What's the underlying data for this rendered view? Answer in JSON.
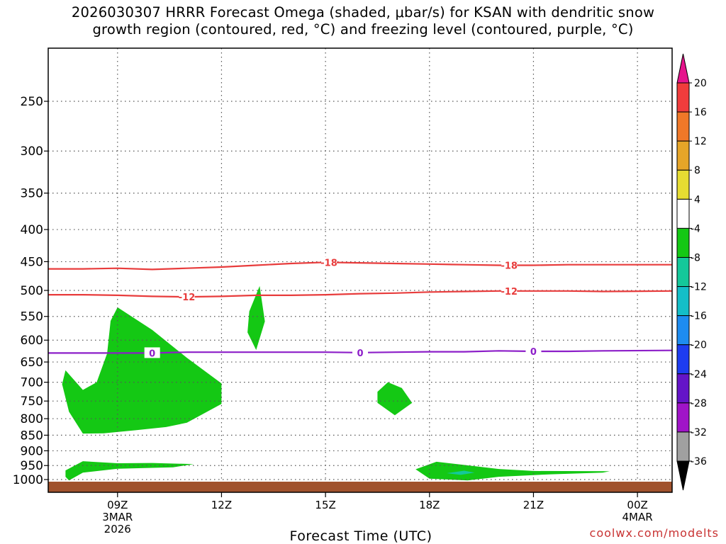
{
  "title_line1": "2026030307 HRRR Forecast Omega (shaded, μbar/s) for KSAN with dendritic snow",
  "title_line2": "growth region (contoured, red, °C) and freezing level (contoured, purple, °C)",
  "xlabel": "Forecast Time (UTC)",
  "credit": "coolwx.com/modelts",
  "colors": {
    "dgz_contour": "#e83c3c",
    "freezing_contour": "#8c1ec8",
    "ground": "#a0522d",
    "grid": "#555555",
    "omega_-4_-8": "#14c814",
    "omega_-8_-12": "#14c89a"
  },
  "chart_data": {
    "type": "heatmap",
    "title": "2026030307 HRRR Forecast Omega (shaded, μbar/s) for KSAN with dendritic snow growth region (contoured, red, °C) and freezing level (contoured, purple, °C)",
    "xlabel": "Forecast Time (UTC)",
    "ylabel": "",
    "y_scale": "log-pressure",
    "y_inverted": true,
    "ylim_hPa": [
      1020,
      200
    ],
    "y_ticks": [
      "250",
      "300",
      "350",
      "400",
      "450",
      "500",
      "550",
      "600",
      "650",
      "700",
      "750",
      "800",
      "850",
      "900",
      "950",
      "1000"
    ],
    "x_ticks": [
      {
        "label": "09Z",
        "sub": [
          "3MAR",
          "2026"
        ],
        "hour": 9
      },
      {
        "label": "12Z",
        "sub": [],
        "hour": 12
      },
      {
        "label": "15Z",
        "sub": [],
        "hour": 15
      },
      {
        "label": "18Z",
        "sub": [],
        "hour": 18
      },
      {
        "label": "21Z",
        "sub": [],
        "hour": 21
      },
      {
        "label": "00Z",
        "sub": [
          "4MAR"
        ],
        "hour": 24
      }
    ],
    "xlim_hours": [
      7,
      25
    ],
    "grid": true,
    "colorbar": {
      "labels": [
        "20",
        "16",
        "12",
        "8",
        "4",
        "-4",
        "-8",
        "-12",
        "-16",
        "-20",
        "-24",
        "-28",
        "-32",
        "-36"
      ],
      "bins": [
        {
          "min": 20,
          "max": null,
          "color": "#e6148c"
        },
        {
          "min": 16,
          "max": 20,
          "color": "#f03c3c"
        },
        {
          "min": 12,
          "max": 16,
          "color": "#f07828"
        },
        {
          "min": 8,
          "max": 12,
          "color": "#e6a528"
        },
        {
          "min": 4,
          "max": 8,
          "color": "#e6dc32"
        },
        {
          "min": -4,
          "max": 4,
          "color": "#ffffff"
        },
        {
          "min": -8,
          "max": -4,
          "color": "#14c814"
        },
        {
          "min": -12,
          "max": -8,
          "color": "#14c89a"
        },
        {
          "min": -16,
          "max": -12,
          "color": "#14bec8"
        },
        {
          "min": -20,
          "max": -16,
          "color": "#1e8cf0"
        },
        {
          "min": -24,
          "max": -20,
          "color": "#1e3cf0"
        },
        {
          "min": -28,
          "max": -24,
          "color": "#6414c8"
        },
        {
          "min": -32,
          "max": -28,
          "color": "#a014c8"
        },
        {
          "min": -36,
          "max": -32,
          "color": "#a0a0a0"
        },
        {
          "min": null,
          "max": -36,
          "color": "#000000"
        }
      ]
    },
    "contours": [
      {
        "name": "DGZ -18°C",
        "value": "-18",
        "color": "#e83c3c",
        "points": [
          [
            7,
            462
          ],
          [
            8,
            462
          ],
          [
            9,
            461
          ],
          [
            10,
            463
          ],
          [
            11,
            461
          ],
          [
            12,
            459
          ],
          [
            13,
            456
          ],
          [
            14,
            453
          ],
          [
            15,
            451
          ],
          [
            16,
            452
          ],
          [
            17,
            453
          ],
          [
            18,
            454
          ],
          [
            19,
            455
          ],
          [
            20,
            456
          ],
          [
            21,
            456
          ],
          [
            22,
            455
          ],
          [
            23,
            455
          ],
          [
            25,
            455
          ]
        ],
        "labels": [
          [
            15.1,
            451
          ],
          [
            20.3,
            456
          ]
        ]
      },
      {
        "name": "DGZ -12°C",
        "value": "-12",
        "color": "#e83c3c",
        "points": [
          [
            7,
            508
          ],
          [
            8,
            508
          ],
          [
            9,
            509
          ],
          [
            10,
            511
          ],
          [
            11,
            512
          ],
          [
            12,
            511
          ],
          [
            13,
            509
          ],
          [
            14,
            509
          ],
          [
            15,
            508
          ],
          [
            16,
            506
          ],
          [
            17,
            505
          ],
          [
            18,
            503
          ],
          [
            19,
            502
          ],
          [
            20,
            501
          ],
          [
            21,
            501
          ],
          [
            22,
            501
          ],
          [
            23,
            502
          ],
          [
            25,
            501
          ]
        ],
        "labels": [
          [
            11.0,
            512
          ],
          [
            20.3,
            501
          ]
        ]
      },
      {
        "name": "Freezing level 0°C",
        "value": "0",
        "color": "#8c1ec8",
        "points": [
          [
            7,
            629
          ],
          [
            8,
            629
          ],
          [
            9,
            629
          ],
          [
            10,
            629
          ],
          [
            11,
            627
          ],
          [
            12,
            627
          ],
          [
            13,
            627
          ],
          [
            14,
            627
          ],
          [
            15,
            627
          ],
          [
            16,
            628
          ],
          [
            17,
            627
          ],
          [
            18,
            626
          ],
          [
            19,
            626
          ],
          [
            20,
            624
          ],
          [
            21,
            625
          ],
          [
            22,
            625
          ],
          [
            23,
            624
          ],
          [
            25,
            623
          ]
        ],
        "labels": [
          [
            10.0,
            629
          ],
          [
            16.0,
            628
          ],
          [
            21.0,
            625
          ]
        ]
      }
    ],
    "shaded_regions": [
      {
        "bin": "-4 to -8",
        "color": "#14c814",
        "points": [
          [
            8.0,
            845
          ],
          [
            8.6,
            844
          ],
          [
            9.5,
            835
          ],
          [
            10.4,
            825
          ],
          [
            11.0,
            812
          ],
          [
            12.0,
            758
          ],
          [
            12.0,
            703
          ],
          [
            11.0,
            640
          ],
          [
            10.0,
            578
          ],
          [
            9.0,
            532
          ],
          [
            8.8,
            559
          ],
          [
            8.7,
            630
          ],
          [
            8.4,
            700
          ],
          [
            8.0,
            720
          ],
          [
            7.5,
            670
          ],
          [
            7.4,
            705
          ],
          [
            7.6,
            780
          ]
        ]
      },
      {
        "bin": "-4 to -8",
        "color": "#14c814",
        "points": [
          [
            13.1,
            492
          ],
          [
            13.25,
            560
          ],
          [
            13.0,
            622
          ],
          [
            12.75,
            583
          ],
          [
            12.8,
            540
          ]
        ]
      },
      {
        "bin": "-4 to -8",
        "color": "#14c814",
        "points": [
          [
            16.5,
            725
          ],
          [
            16.8,
            700
          ],
          [
            17.2,
            715
          ],
          [
            17.5,
            755
          ],
          [
            17.0,
            790
          ],
          [
            16.5,
            755
          ]
        ]
      },
      {
        "bin": "-4 to -8",
        "color": "#14c814",
        "points": [
          [
            7.5,
            990
          ],
          [
            7.5,
            967
          ],
          [
            8.0,
            935
          ],
          [
            9.0,
            942
          ],
          [
            10.0,
            941
          ],
          [
            11.2,
            945
          ],
          [
            10.6,
            956
          ],
          [
            9.0,
            961
          ],
          [
            8.0,
            975
          ],
          [
            7.6,
            1003
          ]
        ]
      },
      {
        "bin": "-4 to -8",
        "color": "#14c814",
        "points": [
          [
            17.6,
            963
          ],
          [
            18.2,
            937
          ],
          [
            19.0,
            948
          ],
          [
            20.0,
            962
          ],
          [
            21.0,
            969
          ],
          [
            23.2,
            970
          ],
          [
            23.0,
            975
          ],
          [
            21.5,
            981
          ],
          [
            20.0,
            990
          ],
          [
            19.1,
            1003
          ],
          [
            18.0,
            997
          ]
        ]
      },
      {
        "bin": "-8 to -12",
        "color": "#14c89a",
        "points": [
          [
            18.5,
            977
          ],
          [
            19.0,
            968
          ],
          [
            19.3,
            975
          ],
          [
            18.9,
            983
          ]
        ]
      }
    ]
  }
}
